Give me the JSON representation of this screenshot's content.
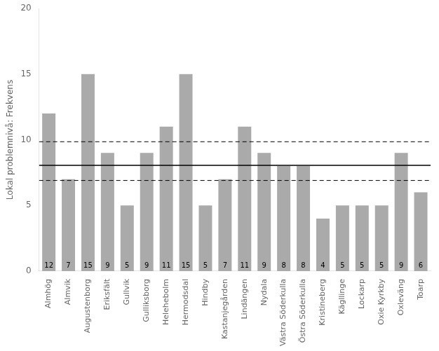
{
  "chart_data": {
    "type": "bar",
    "categories": [
      "Almhög",
      "Almvik",
      "Augustenborg",
      "Eriksfält",
      "Gullvik",
      "Gulliksborg",
      "Helehebolm",
      "Hermodsdal",
      "Hindby",
      "Kastanjegården",
      "Lindängen",
      "Nydala",
      "Västra Söderkulla",
      "Östra Söderkulla",
      "Kristineberg",
      "Kägllinge",
      "Lockarp",
      "Oxie Kyrkby",
      "Oxleväng",
      "Toarp"
    ],
    "values": [
      12,
      7,
      15,
      9,
      5,
      9,
      11,
      15,
      5,
      7,
      11,
      9,
      8,
      8,
      4,
      5,
      5,
      5,
      9,
      6
    ],
    "color": "#aaaaaa",
    "ylabel": "Lokal problemnivå: Frekvens",
    "ylim": [
      0,
      20
    ],
    "yticks": [
      0,
      5,
      10,
      15,
      20
    ],
    "grid": false,
    "data_labels": true,
    "reference_lines": [
      {
        "value": 8.05,
        "line_style": "solid",
        "color": "#000000"
      },
      {
        "value": 9.85,
        "line_style": "dashed",
        "color": "#000000"
      },
      {
        "value": 6.9,
        "line_style": "dashed",
        "color": "#000000"
      }
    ]
  }
}
